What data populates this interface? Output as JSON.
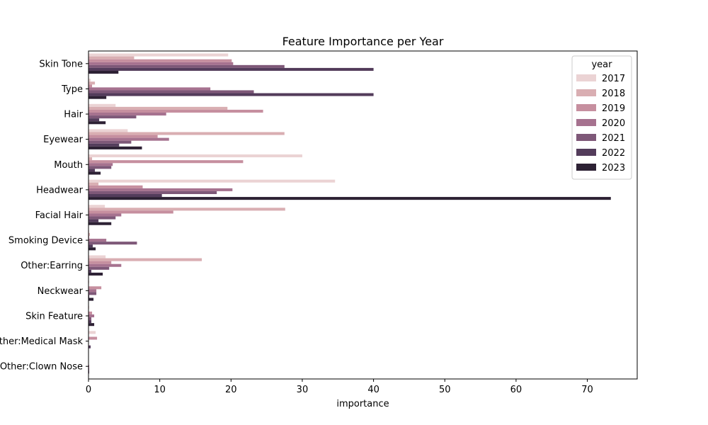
{
  "chart_data": {
    "type": "bar",
    "orientation": "horizontal",
    "title": "Feature Importance per Year",
    "xlabel": "importance",
    "ylabel": "",
    "xlim": [
      0,
      77
    ],
    "xticks": [
      "0",
      "10",
      "20",
      "30",
      "40",
      "50",
      "60",
      "70"
    ],
    "categories": [
      "Skin Tone",
      "Type",
      "Hair",
      "Eyewear",
      "Mouth",
      "Headwear",
      "Facial Hair",
      "Smoking Device",
      "Other:Earring",
      "Neckwear",
      "Skin Feature",
      "Other:Medical Mask",
      "Other:Clown Nose"
    ],
    "legend": {
      "title": "year",
      "position": "top-right"
    },
    "grid": false,
    "series": [
      {
        "name": "2017",
        "color": "#ebd3d4",
        "values": [
          19.6,
          0.3,
          3.8,
          5.5,
          30.0,
          34.6,
          2.3,
          0.1,
          2.4,
          0.1,
          0.1,
          1.0,
          0.0
        ]
      },
      {
        "name": "2018",
        "color": "#d9aeb2",
        "values": [
          6.4,
          0.9,
          19.5,
          27.5,
          0.5,
          1.4,
          27.6,
          0.2,
          15.9,
          0.0,
          0.0,
          0.0,
          0.0
        ]
      },
      {
        "name": "2019",
        "color": "#c68f9f",
        "values": [
          20.1,
          0.5,
          24.5,
          9.7,
          21.7,
          7.6,
          11.9,
          0.1,
          3.2,
          1.8,
          0.5,
          1.2,
          0.0
        ]
      },
      {
        "name": "2020",
        "color": "#a6728f",
        "values": [
          20.3,
          17.1,
          10.9,
          11.3,
          3.4,
          20.2,
          4.6,
          2.5,
          4.6,
          1.1,
          0.8,
          0.0,
          0.1
        ]
      },
      {
        "name": "2021",
        "color": "#7e5878",
        "values": [
          27.5,
          23.2,
          6.7,
          6.0,
          3.2,
          18.0,
          3.8,
          6.8,
          2.9,
          1.1,
          0.4,
          0.0,
          0.1
        ]
      },
      {
        "name": "2022",
        "color": "#533c5b",
        "values": [
          40.0,
          40.0,
          1.5,
          4.3,
          0.9,
          10.3,
          1.4,
          0.6,
          0.4,
          0.1,
          0.4,
          0.3,
          0.1
        ]
      },
      {
        "name": "2023",
        "color": "#2d2134",
        "values": [
          4.2,
          2.5,
          2.4,
          7.5,
          1.7,
          73.3,
          3.2,
          1.0,
          2.0,
          0.7,
          0.8,
          0.0,
          0.0
        ]
      }
    ]
  }
}
